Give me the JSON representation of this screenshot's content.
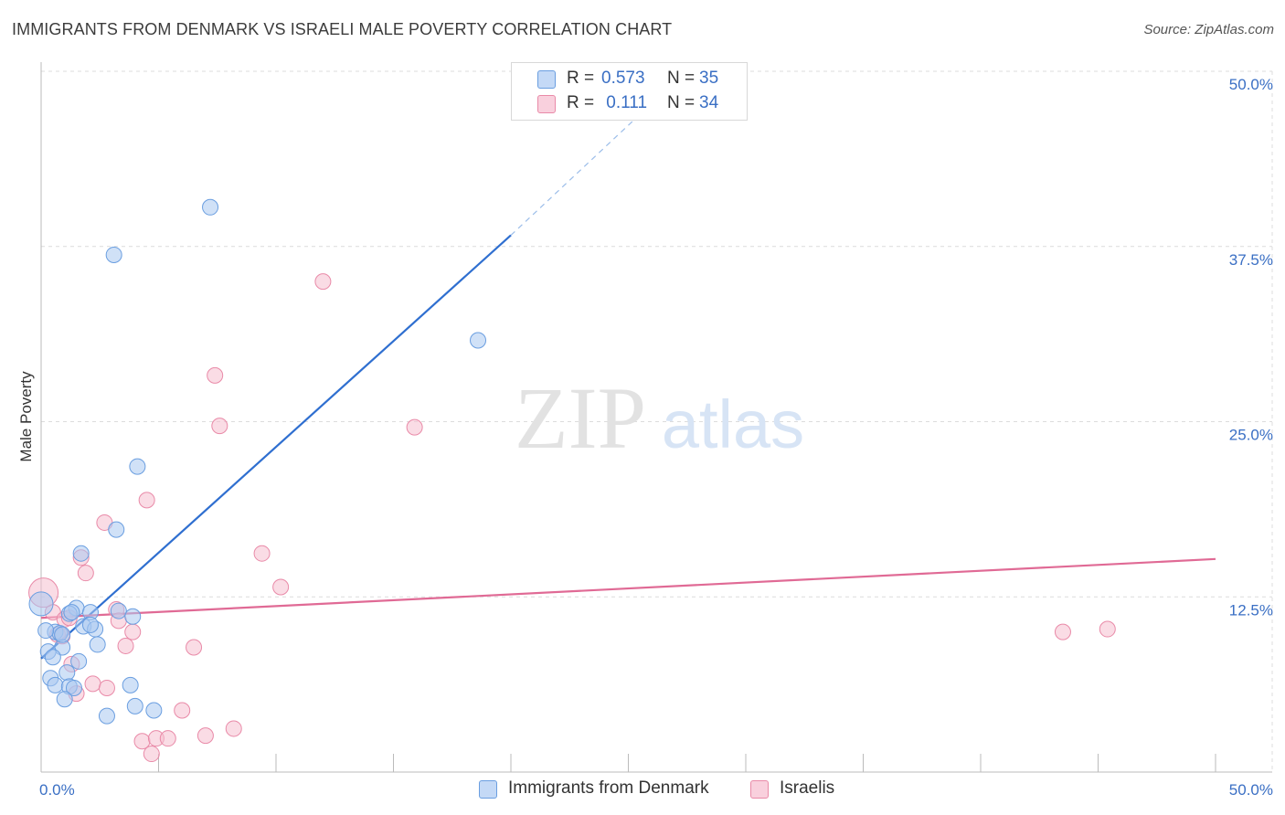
{
  "title": "IMMIGRANTS FROM DENMARK VS ISRAELI MALE POVERTY CORRELATION CHART",
  "source": "Source: ZipAtlas.com",
  "watermark": {
    "zip": "ZIP",
    "atlas": "atlas"
  },
  "colors": {
    "blue_fill": "#a9c8f0",
    "blue_stroke": "#6a9ee0",
    "blue_line": "#2f6fd0",
    "pink_fill": "#f6bfd0",
    "pink_stroke": "#e98aa8",
    "pink_line": "#e06a95",
    "axis_text": "#3a6fc4",
    "grid": "#dcdcdc"
  },
  "legend_top": [
    {
      "r_label": "R =",
      "r_value": "0.573",
      "n_label": "N =",
      "n_value": "35"
    },
    {
      "r_label": "R =",
      "r_value": " 0.111",
      "n_label": "N =",
      "n_value": "34"
    }
  ],
  "legend_bottom": [
    "Immigrants from Denmark",
    "Israelis"
  ],
  "chart_data": {
    "type": "scatter",
    "title": "IMMIGRANTS FROM DENMARK VS ISRAELI MALE POVERTY CORRELATION CHART",
    "xlabel": "",
    "ylabel": "Male Poverty",
    "xlim": [
      0,
      50
    ],
    "ylim": [
      0,
      50
    ],
    "x_tick_labels": [
      "0.0%",
      "50.0%"
    ],
    "y_ticks": [
      12.5,
      25.0,
      37.5,
      50.0
    ],
    "y_tick_labels": [
      "12.5%",
      "25.0%",
      "37.5%",
      "50.0%"
    ],
    "grid": true,
    "series": [
      {
        "name": "Immigrants from Denmark",
        "color": "#6a9ee0",
        "points": [
          [
            7.2,
            40.3
          ],
          [
            3.1,
            36.9
          ],
          [
            18.6,
            30.8
          ],
          [
            4.1,
            21.8
          ],
          [
            3.2,
            17.3
          ],
          [
            1.7,
            15.6
          ],
          [
            1.5,
            11.7
          ],
          [
            2.1,
            11.4
          ],
          [
            3.3,
            11.5
          ],
          [
            3.9,
            11.1
          ],
          [
            1.2,
            11.3
          ],
          [
            1.8,
            10.4
          ],
          [
            2.3,
            10.2
          ],
          [
            0.6,
            10.0
          ],
          [
            0.8,
            9.9
          ],
          [
            2.4,
            9.1
          ],
          [
            0.9,
            8.9
          ],
          [
            0.3,
            8.6
          ],
          [
            0.5,
            8.2
          ],
          [
            1.6,
            7.9
          ],
          [
            1.1,
            7.1
          ],
          [
            0.4,
            6.7
          ],
          [
            0.6,
            6.2
          ],
          [
            1.2,
            6.1
          ],
          [
            1.4,
            6.0
          ],
          [
            3.8,
            6.2
          ],
          [
            1.0,
            5.2
          ],
          [
            4.0,
            4.7
          ],
          [
            4.8,
            4.4
          ],
          [
            2.8,
            4.0
          ],
          [
            0.0,
            12.0
          ],
          [
            0.2,
            10.1
          ],
          [
            2.1,
            10.5
          ],
          [
            1.3,
            11.4
          ],
          [
            0.9,
            9.8
          ]
        ],
        "trend": {
          "from": [
            0,
            8.1
          ],
          "solid_to": [
            20,
            38.3
          ],
          "dashed_to": [
            26.5,
            48.5
          ]
        }
      },
      {
        "name": "Israelis",
        "color": "#e98aa8",
        "points": [
          [
            12.0,
            35.0
          ],
          [
            7.4,
            28.3
          ],
          [
            7.6,
            24.7
          ],
          [
            15.9,
            24.6
          ],
          [
            4.5,
            19.4
          ],
          [
            2.7,
            17.8
          ],
          [
            1.7,
            15.3
          ],
          [
            1.9,
            14.2
          ],
          [
            9.4,
            15.6
          ],
          [
            10.2,
            13.2
          ],
          [
            0.5,
            11.4
          ],
          [
            1.0,
            10.9
          ],
          [
            3.2,
            11.6
          ],
          [
            3.3,
            10.8
          ],
          [
            3.9,
            10.0
          ],
          [
            0.7,
            9.8
          ],
          [
            3.6,
            9.0
          ],
          [
            6.5,
            8.9
          ],
          [
            1.3,
            7.7
          ],
          [
            2.2,
            6.3
          ],
          [
            2.8,
            6.0
          ],
          [
            1.5,
            5.6
          ],
          [
            6.0,
            4.4
          ],
          [
            4.3,
            2.2
          ],
          [
            4.9,
            2.4
          ],
          [
            5.4,
            2.4
          ],
          [
            7.0,
            2.6
          ],
          [
            8.2,
            3.1
          ],
          [
            4.7,
            1.3
          ],
          [
            43.5,
            10.0
          ],
          [
            45.4,
            10.2
          ],
          [
            0.1,
            12.8
          ],
          [
            1.2,
            11.0
          ],
          [
            0.9,
            9.7
          ]
        ],
        "trend": {
          "from": [
            0,
            11.0
          ],
          "to": [
            50,
            15.2
          ]
        }
      }
    ]
  }
}
